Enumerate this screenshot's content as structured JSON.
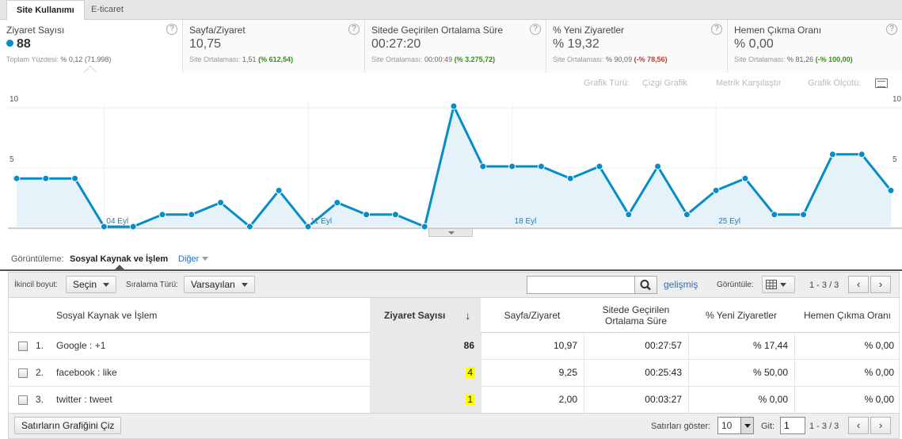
{
  "tabs": [
    "Site Kullanımı",
    "E-ticaret"
  ],
  "metrics": [
    {
      "name": "Ziyaret Sayısı",
      "value": "88",
      "sub_label": "Toplam Yüzdesi:",
      "sub_value": "% 0,12 (71.998)",
      "sub_delta": ""
    },
    {
      "name": "Sayfa/Ziyaret",
      "value": "10,75",
      "sub_label": "Site Ortalaması:",
      "sub_value": "1,51",
      "sub_delta": "(% 612,54)"
    },
    {
      "name": "Sitede Geçirilen Ortalama Süre",
      "value": "00:27:20",
      "sub_label": "Site Ortalaması:",
      "sub_value": "00:00:49",
      "sub_delta": "(% 3.275,72)"
    },
    {
      "name": "% Yeni Ziyaretler",
      "value": "% 19,32",
      "sub_label": "Site Ortalaması:",
      "sub_value": "% 90,09",
      "sub_delta": "(-% 78,56)"
    },
    {
      "name": "Hemen Çıkma Oranı",
      "value": "% 0,00",
      "sub_label": "Site Ortalaması:",
      "sub_value": "% 81,26",
      "sub_delta": "(-% 100,00)"
    }
  ],
  "help_glyph": "?",
  "graph_options": {
    "type_label": "Grafik Türü:",
    "type_value": "Çizgi Grafik",
    "compare": "Metrik Karşılaştır",
    "scale": "Grafik Ölçütü:"
  },
  "chart_data": {
    "type": "area",
    "x": [
      "01 Eyl",
      "02 Eyl",
      "03 Eyl",
      "04 Eyl",
      "05 Eyl",
      "06 Eyl",
      "07 Eyl",
      "08 Eyl",
      "09 Eyl",
      "10 Eyl",
      "11 Eyl",
      "12 Eyl",
      "13 Eyl",
      "14 Eyl",
      "15 Eyl",
      "16 Eyl",
      "17 Eyl",
      "18 Eyl",
      "19 Eyl",
      "20 Eyl",
      "21 Eyl",
      "22 Eyl",
      "23 Eyl",
      "24 Eyl",
      "25 Eyl",
      "26 Eyl",
      "27 Eyl",
      "28 Eyl",
      "29 Eyl",
      "30 Eyl",
      "31 Eyl"
    ],
    "series": [
      {
        "values": [
          4,
          4,
          4,
          0,
          0,
          1,
          1,
          2,
          0,
          3,
          0,
          2,
          1,
          1,
          0,
          10,
          5,
          5,
          5,
          4,
          5,
          1,
          5,
          1,
          3,
          4,
          1,
          1,
          6,
          6,
          3
        ]
      }
    ],
    "x_tick_labels": [
      "04 Eyl",
      "11 Eyl",
      "18 Eyl",
      "25 Eyl"
    ],
    "y_tick_labels": [
      "10",
      "5"
    ],
    "ylim": [
      0,
      10
    ],
    "color": "#058dc7",
    "fill": "#e5f2f9"
  },
  "dimension": {
    "label": "Görüntüleme:",
    "active": "Sosyal Kaynak ve İşlem",
    "other": "Diğer"
  },
  "toolbar": {
    "secondary_label": "İkincil boyut:",
    "secondary_value": "Seçin",
    "sort_label": "Sıralama Türü:",
    "sort_value": "Varsayılan",
    "search_placeholder": "",
    "advanced": "gelişmiş",
    "view_label": "Görüntüle:",
    "range": "1 - 3 / 3"
  },
  "table": {
    "headers": [
      "Sosyal Kaynak ve İşlem",
      "Ziyaret Sayısı",
      "Sayfa/Ziyaret",
      "Sitede Geçirilen Ortalama Süre",
      "% Yeni Ziyaretler",
      "Hemen Çıkma Oranı"
    ],
    "sort_arrow": "↓",
    "rows": [
      {
        "index": "1.",
        "name": "Google : +1",
        "visits": "86",
        "pages": "10,97",
        "duration": "00:27:57",
        "new": "% 17,44",
        "bounce": "% 0,00",
        "highlight": false
      },
      {
        "index": "2.",
        "name": "facebook : like",
        "visits": "4",
        "pages": "9,25",
        "duration": "00:25:43",
        "new": "% 50,00",
        "bounce": "% 0,00",
        "highlight": true
      },
      {
        "index": "3.",
        "name": "twitter : tweet",
        "visits": "1",
        "pages": "2,00",
        "duration": "00:03:27",
        "new": "% 0,00",
        "bounce": "% 0,00",
        "highlight": true
      }
    ]
  },
  "footer": {
    "plot_button": "Satırların Grafiğini Çiz",
    "rows_label": "Satırları göster:",
    "rows_value": "10",
    "goto_label": "Git:",
    "goto_value": "1",
    "range": "1 - 3 / 3"
  },
  "pager": {
    "prev": "‹",
    "next": "›"
  }
}
